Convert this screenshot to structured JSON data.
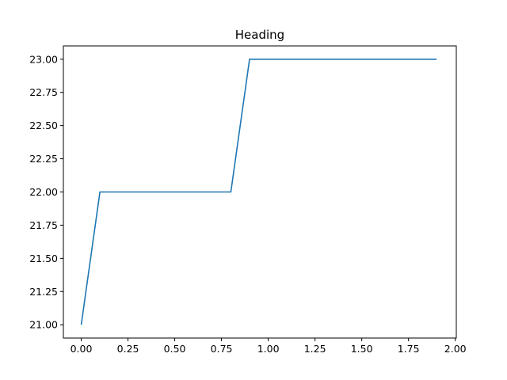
{
  "chart_data": {
    "type": "line",
    "title": "Heading",
    "xlabel": "",
    "ylabel": "",
    "xlim": [
      -0.0955,
      2.0055
    ],
    "ylim": [
      20.9,
      23.1
    ],
    "grid": false,
    "line_color": "#1f77b4",
    "x_ticks": [
      0.0,
      0.25,
      0.5,
      0.75,
      1.0,
      1.25,
      1.5,
      1.75,
      2.0
    ],
    "x_tick_labels": [
      "0.00",
      "0.25",
      "0.50",
      "0.75",
      "1.00",
      "1.25",
      "1.50",
      "1.75",
      "2.00"
    ],
    "y_ticks": [
      21.0,
      21.25,
      21.5,
      21.75,
      22.0,
      22.25,
      22.5,
      22.75,
      23.0
    ],
    "y_tick_labels": [
      "21.00",
      "21.25",
      "21.50",
      "21.75",
      "22.00",
      "22.25",
      "22.50",
      "22.75",
      "23.00"
    ],
    "series": [
      {
        "x": [
          0.0,
          0.1,
          0.2,
          0.3,
          0.4,
          0.5,
          0.6,
          0.7,
          0.8,
          0.9,
          1.0,
          1.1,
          1.2,
          1.3,
          1.4,
          1.5,
          1.6,
          1.7,
          1.8,
          1.9
        ],
        "values": [
          21,
          22,
          22,
          22,
          22,
          22,
          22,
          22,
          22,
          23,
          23,
          23,
          23,
          23,
          23,
          23,
          23,
          23,
          23,
          23
        ]
      }
    ]
  }
}
